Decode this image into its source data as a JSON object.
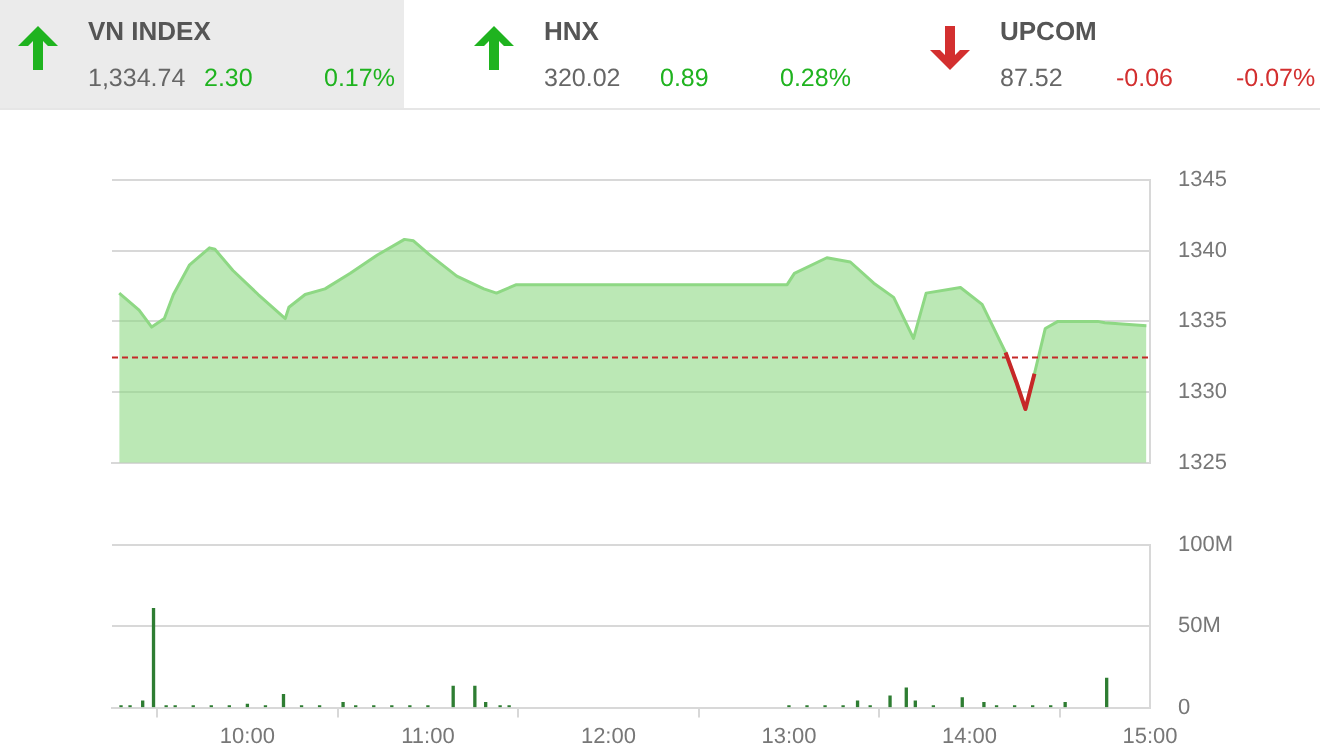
{
  "chart_data": [
    {
      "type": "other",
      "colors": [
        "#1fb31f",
        "#1fb31f",
        "#d32f2f"
      ],
      "annotations": [
        "VN INDEX",
        "1,334.74",
        "2.30",
        "0.17%",
        "HNX",
        "320.02",
        "0.89",
        "0.28%",
        "UPCOM",
        "87.52",
        "-0.06",
        "-0.07%"
      ]
    },
    {
      "type": "area",
      "x": [
        9.29,
        9.4,
        9.47,
        9.54,
        9.59,
        9.68,
        9.79,
        9.82,
        9.92,
        10.06,
        10.21,
        10.23,
        10.32,
        10.43,
        10.57,
        10.72,
        10.87,
        10.92,
        11.01,
        11.16,
        11.31,
        11.38,
        11.49,
        12.99,
        13.03,
        13.21,
        13.34,
        13.47,
        13.58,
        13.69,
        13.76,
        13.95,
        14.07,
        14.2,
        14.26,
        14.31,
        14.36,
        14.42,
        14.49,
        14.71,
        14.75,
        14.98
      ],
      "series": [
        {
          "color": "#8ed884",
          "values": [
            1337.0,
            1335.8,
            1334.6,
            1335.2,
            1336.9,
            1339.0,
            1340.2,
            1340.1,
            1338.6,
            1336.9,
            1335.2,
            1336.0,
            1336.9,
            1337.3,
            1338.4,
            1339.7,
            1340.8,
            1340.7,
            1339.7,
            1338.2,
            1337.3,
            1337.0,
            1337.6,
            1337.6,
            1338.4,
            1339.5,
            1339.2,
            1337.7,
            1336.7,
            1333.8,
            1337.0,
            1337.4,
            1336.2,
            1332.8,
            1330.7,
            1328.8,
            1331.3,
            1334.5,
            1335.0,
            1335.0,
            1334.9,
            1334.7
          ]
        },
        {
          "type": "line",
          "color": "#c62828",
          "x": [
            14.2,
            14.26,
            14.31,
            14.36
          ],
          "values": [
            1332.8,
            1330.7,
            1328.8,
            1331.3
          ]
        }
      ],
      "xlim": [
        9.25,
        15
      ],
      "ylim": [
        1325,
        1345
      ],
      "yticks": [
        1325,
        1330,
        1335,
        1340,
        1345
      ],
      "grid": "y",
      "tick_labels": "y",
      "ref_lines": [
        {
          "axis": "y",
          "value": 1332.44,
          "color": "#c62828",
          "line_style": "dashed"
        }
      ]
    },
    {
      "type": "bar",
      "x": [
        9.3,
        9.35,
        9.42,
        9.48,
        9.55,
        9.6,
        9.7,
        9.8,
        9.9,
        10.0,
        10.1,
        10.2,
        10.3,
        10.4,
        10.53,
        10.6,
        10.7,
        10.8,
        10.9,
        11.0,
        11.14,
        11.26,
        11.32,
        11.4,
        11.45,
        13.0,
        13.1,
        13.2,
        13.3,
        13.38,
        13.45,
        13.56,
        13.65,
        13.7,
        13.8,
        13.96,
        14.08,
        14.15,
        14.25,
        14.35,
        14.45,
        14.53,
        14.76
      ],
      "values": [
        1,
        1,
        4,
        61,
        1,
        1,
        1,
        1,
        1,
        2,
        1,
        8,
        1,
        1,
        3,
        1,
        1,
        1,
        1,
        1,
        13,
        13,
        3,
        1,
        1,
        1,
        1,
        1,
        1,
        4,
        1,
        7,
        12,
        4,
        1,
        6,
        3,
        1,
        1,
        1,
        1,
        3,
        18
      ],
      "color": "#2e7d32",
      "xlim": [
        9.25,
        15
      ],
      "xticks": [
        {
          "value": 10,
          "label": "10:00"
        },
        {
          "value": 11,
          "label": "11:00"
        },
        {
          "value": 12,
          "label": "12:00"
        },
        {
          "value": 13,
          "label": "13:00"
        },
        {
          "value": 14,
          "label": "14:00"
        },
        {
          "value": 15,
          "label": "15:00"
        }
      ],
      "ylim": [
        0,
        100
      ],
      "yticks": [
        0,
        {
          "value": 50,
          "label": "50M"
        },
        {
          "value": 100,
          "label": "100M"
        }
      ],
      "grid": "y"
    }
  ]
}
